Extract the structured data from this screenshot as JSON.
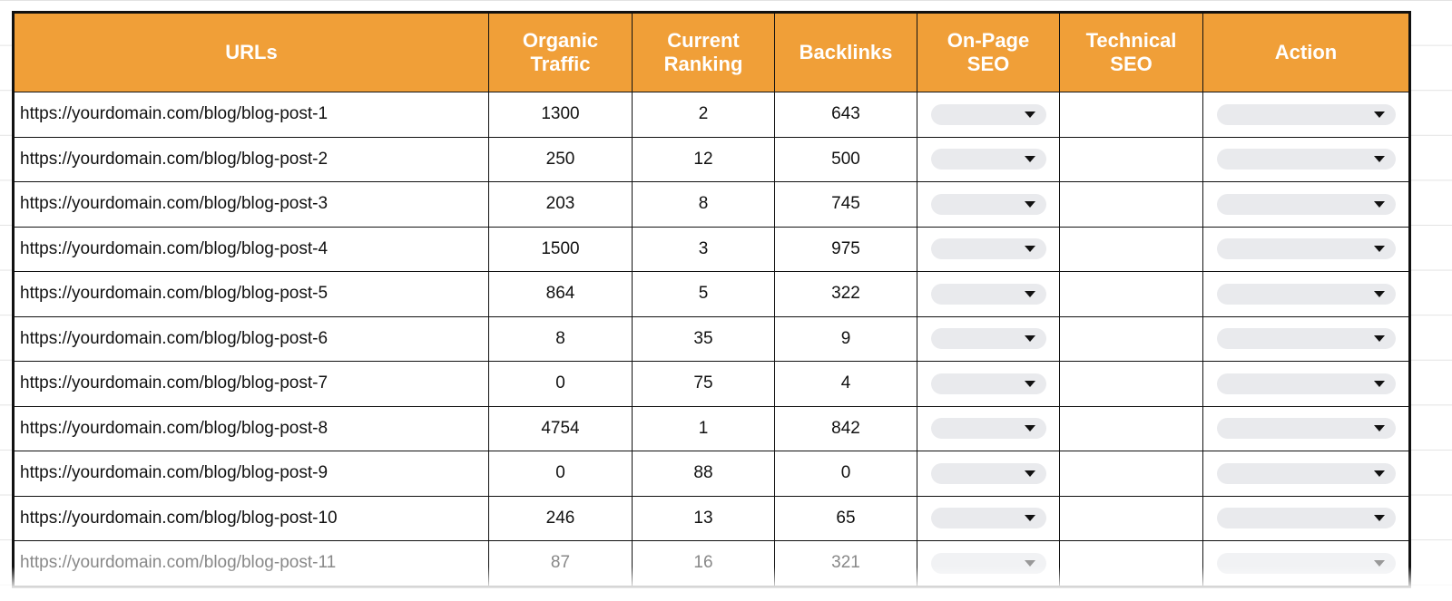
{
  "columns": [
    "URLs",
    "Organic Traffic",
    "Current Ranking",
    "Backlinks",
    "On-Page SEO",
    "Technical SEO",
    "Action"
  ],
  "rows": [
    {
      "url": "https://yourdomain.com/blog/blog-post-1",
      "traffic": "1300",
      "ranking": "2",
      "backlinks": "643"
    },
    {
      "url": "https://yourdomain.com/blog/blog-post-2",
      "traffic": "250",
      "ranking": "12",
      "backlinks": "500"
    },
    {
      "url": "https://yourdomain.com/blog/blog-post-3",
      "traffic": "203",
      "ranking": "8",
      "backlinks": "745"
    },
    {
      "url": "https://yourdomain.com/blog/blog-post-4",
      "traffic": "1500",
      "ranking": "3",
      "backlinks": "975"
    },
    {
      "url": "https://yourdomain.com/blog/blog-post-5",
      "traffic": "864",
      "ranking": "5",
      "backlinks": "322"
    },
    {
      "url": "https://yourdomain.com/blog/blog-post-6",
      "traffic": "8",
      "ranking": "35",
      "backlinks": "9"
    },
    {
      "url": "https://yourdomain.com/blog/blog-post-7",
      "traffic": "0",
      "ranking": "75",
      "backlinks": "4"
    },
    {
      "url": "https://yourdomain.com/blog/blog-post-8",
      "traffic": "4754",
      "ranking": "1",
      "backlinks": "842"
    },
    {
      "url": "https://yourdomain.com/blog/blog-post-9",
      "traffic": "0",
      "ranking": "88",
      "backlinks": "0"
    },
    {
      "url": "https://yourdomain.com/blog/blog-post-10",
      "traffic": "246",
      "ranking": "13",
      "backlinks": "65"
    },
    {
      "url": "https://yourdomain.com/blog/blog-post-11",
      "traffic": "87",
      "ranking": "16",
      "backlinks": "321"
    }
  ],
  "colors": {
    "header": "#F09F38",
    "header_text": "#FFFFFF",
    "dropdown": "#E9EAED"
  },
  "icons": {
    "dropdown": "caret-down-icon"
  }
}
